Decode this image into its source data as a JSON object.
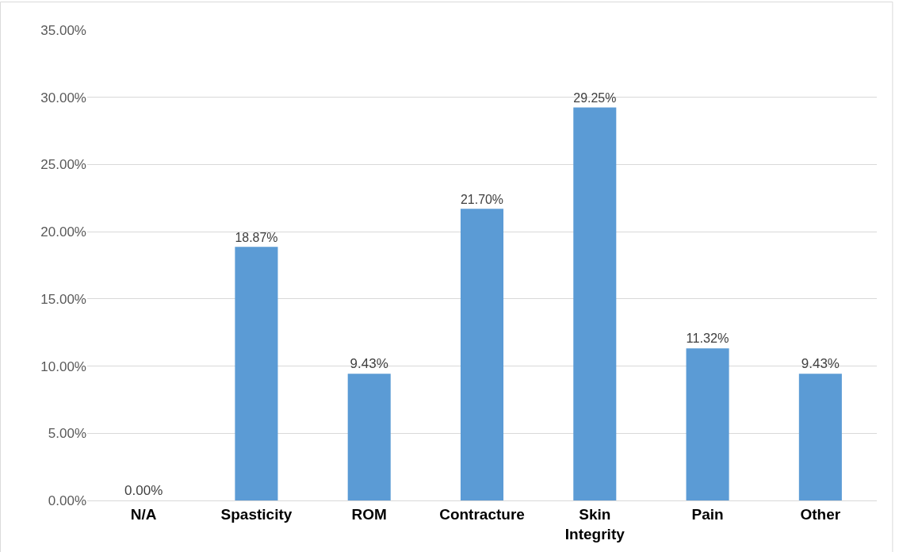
{
  "chart_data": {
    "type": "bar",
    "categories": [
      "N/A",
      "Spasticity",
      "ROM",
      "Contracture",
      "Skin Integrity",
      "Pain",
      "Other"
    ],
    "values": [
      0,
      18.87,
      9.43,
      21.7,
      29.25,
      11.32,
      9.43
    ],
    "value_labels": [
      "0.00%",
      "18.87%",
      "9.43%",
      "21.70%",
      "29.25%",
      "11.32%",
      "9.43%"
    ],
    "color": "#5b9bd5",
    "ylim": [
      0,
      35
    ],
    "yticks": [
      {
        "value": 0,
        "label": "0.00%"
      },
      {
        "value": 5,
        "label": "5.00%"
      },
      {
        "value": 10,
        "label": "10.00%"
      },
      {
        "value": 15,
        "label": "15.00%"
      },
      {
        "value": 20,
        "label": "20.00%"
      },
      {
        "value": 25,
        "label": "25.00%"
      },
      {
        "value": 30,
        "label": "30.00%"
      },
      {
        "value": 35,
        "label": "35.00%"
      }
    ],
    "grid": "y"
  }
}
